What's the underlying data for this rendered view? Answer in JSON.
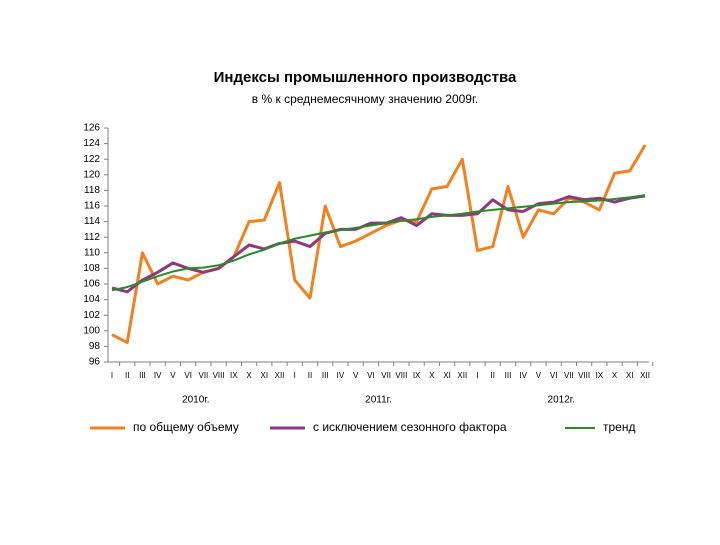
{
  "chart_data": {
    "type": "line",
    "title": "Индексы промышленного производства",
    "subtitle": "в % к среднемесячному значению 2009г.",
    "categories": [
      "I",
      "II",
      "III",
      "IV",
      "V",
      "VI",
      "VII",
      "VIII",
      "IX",
      "X",
      "XI",
      "XII",
      "I",
      "II",
      "III",
      "IV",
      "V",
      "VI",
      "VII",
      "VIII",
      "IX",
      "X",
      "XI",
      "XII",
      "I",
      "II",
      "III",
      "IV",
      "V",
      "VI",
      "VII",
      "VIII",
      "IX",
      "X",
      "XI",
      "XII"
    ],
    "year_labels": [
      "2010г.",
      "2011г.",
      "2012г."
    ],
    "series": [
      {
        "name": "по общему объему",
        "color": "#f08020",
        "values": [
          99.5,
          98.5,
          110,
          106,
          107,
          106.5,
          107.5,
          108,
          109.5,
          114,
          114.2,
          119,
          106.5,
          104.2,
          116,
          110.8,
          111.5,
          112.5,
          113.5,
          114.2,
          114,
          118.2,
          118.5,
          122,
          110.3,
          110.8,
          118.5,
          112,
          115.5,
          115,
          117,
          116.5,
          115.5,
          120.2,
          120.5,
          123.8
        ]
      },
      {
        "name": "с исключением сезонного фактора",
        "color": "#8e3a7a",
        "values": [
          105.5,
          105,
          106.5,
          107.5,
          108.7,
          108,
          107.5,
          108,
          109.5,
          111,
          110.5,
          111.2,
          111.5,
          110.8,
          112.5,
          113,
          113,
          113.8,
          113.8,
          114.5,
          113.5,
          115,
          114.8,
          114.8,
          115,
          116.8,
          115.5,
          115.3,
          116.3,
          116.5,
          117.2,
          116.8,
          117,
          116.5,
          117,
          117.3
        ]
      },
      {
        "name": "тренд",
        "color": "#2a8a2a",
        "values": [
          105.2,
          105.6,
          106.3,
          107,
          107.6,
          108,
          108.1,
          108.4,
          109,
          109.8,
          110.4,
          111.2,
          111.8,
          112.2,
          112.6,
          112.9,
          113.2,
          113.5,
          113.8,
          114.1,
          114.3,
          114.6,
          114.8,
          115,
          115.3,
          115.5,
          115.7,
          115.9,
          116.1,
          116.3,
          116.5,
          116.6,
          116.7,
          116.9,
          117.1,
          117.4
        ]
      }
    ],
    "ylim": [
      96,
      126
    ],
    "yticks": [
      96,
      98,
      100,
      102,
      104,
      106,
      108,
      110,
      112,
      114,
      116,
      118,
      120,
      122,
      124,
      126
    ]
  }
}
